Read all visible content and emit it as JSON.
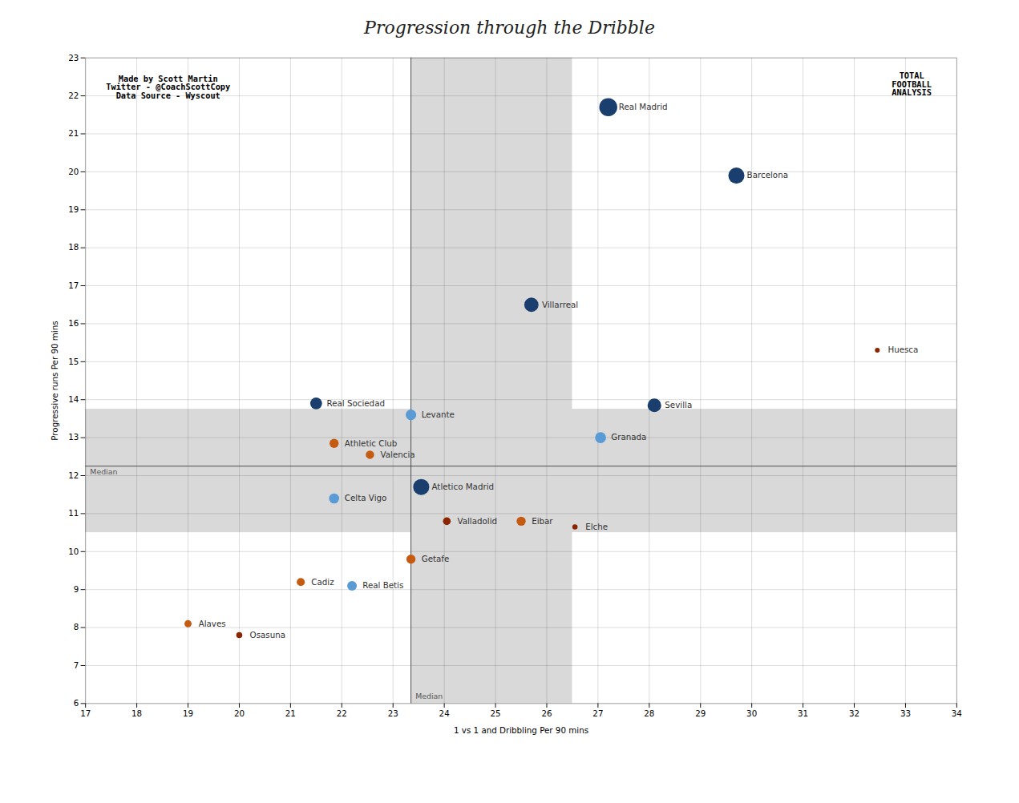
{
  "chart_data": {
    "type": "scatter",
    "title": "Progression through the Dribble",
    "xlabel": "1 vs 1 and Dribbling Per 90 mins",
    "ylabel": "Progressive runs Per 90 mins",
    "xlim": [
      17,
      34
    ],
    "ylim": [
      6,
      23
    ],
    "xticks": [
      17,
      18,
      19,
      20,
      21,
      22,
      23,
      24,
      25,
      26,
      27,
      28,
      29,
      30,
      31,
      32,
      33,
      34
    ],
    "yticks": [
      6,
      7,
      8,
      9,
      10,
      11,
      12,
      13,
      14,
      15,
      16,
      17,
      18,
      19,
      20,
      21,
      22,
      23
    ],
    "grid": true,
    "labels": [
      "Real Madrid",
      "Barcelona",
      "Villarreal",
      "Real Sociedad",
      "Levante",
      "Sevilla",
      "Granada",
      "Atletico Madrid",
      "Celta Vigo",
      "Athletic Club",
      "Valencia",
      "Cadiz",
      "Real Betis",
      "Getafe",
      "Valladolid",
      "Eibar",
      "Elche",
      "Alaves",
      "Osasuna",
      "Huesca"
    ],
    "x": [
      27.2,
      29.7,
      25.7,
      21.5,
      23.35,
      28.1,
      27.05,
      23.55,
      21.85,
      21.85,
      22.55,
      21.2,
      22.2,
      23.35,
      24.05,
      25.5,
      26.55,
      19.0,
      20.0,
      32.45
    ],
    "values": [
      21.7,
      19.9,
      16.5,
      13.9,
      13.6,
      13.85,
      13.0,
      11.7,
      11.4,
      12.85,
      12.55,
      9.2,
      9.1,
      9.8,
      10.8,
      10.8,
      10.65,
      8.1,
      7.8,
      15.3
    ],
    "sizes": [
      350,
      280,
      220,
      150,
      120,
      200,
      130,
      280,
      110,
      90,
      75,
      70,
      100,
      90,
      65,
      90,
      30,
      55,
      40,
      25
    ],
    "colors": [
      "#1a3f6f",
      "#1a3f6f",
      "#1a3f6f",
      "#1a3f6f",
      "#5b9bd5",
      "#1a3f6f",
      "#5b9bd5",
      "#1a3f6f",
      "#5b9bd5",
      "#c55a11",
      "#c55a11",
      "#c55a11",
      "#5b9bd5",
      "#c55a11",
      "#8b2500",
      "#c55a11",
      "#8b2500",
      "#c55a11",
      "#8b2500",
      "#8b2500"
    ],
    "median_x": 23.35,
    "median_y": 12.25,
    "median_color": "#444444",
    "median_labels": [
      "Median",
      "Median"
    ],
    "bands": {
      "x": [
        23.35,
        26.5
      ],
      "y": [
        10.5,
        13.75
      ]
    },
    "band_color": "#d9d9d9",
    "annotations": [
      "Made by Scott Martin\nTwitter - @CoachScottCopy\nData Source - Wyscout",
      "TOTAL\nFOOTBALL\nANALYSIS"
    ]
  }
}
